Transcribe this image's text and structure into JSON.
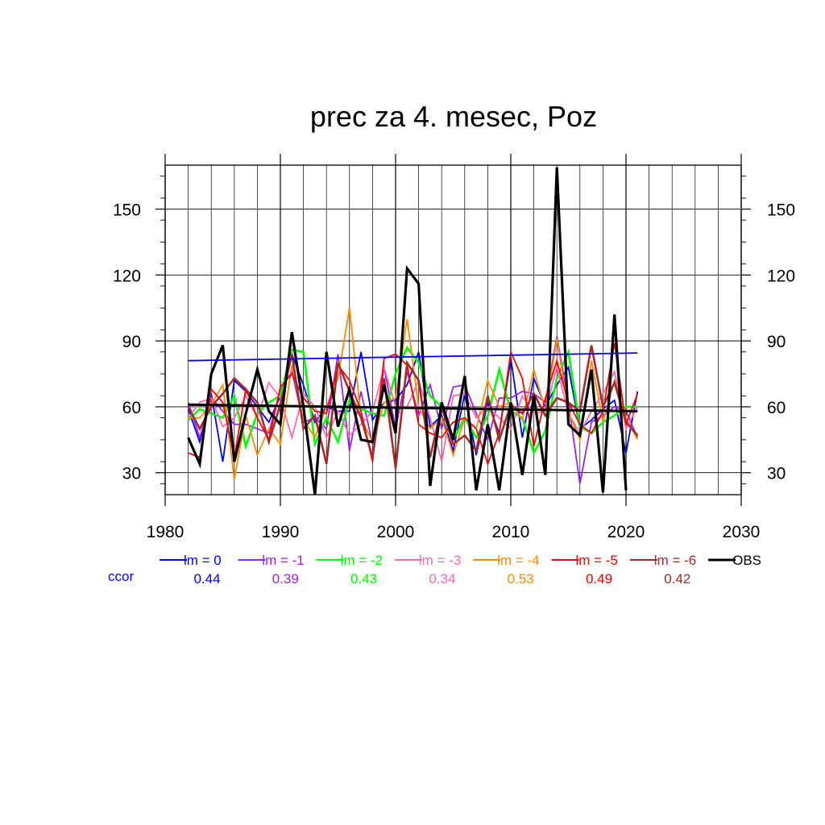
{
  "chart_data": {
    "type": "line",
    "title": "prec za 4. mesec, Poz",
    "xlabel": "",
    "ylabel": "",
    "xlim": [
      1980,
      2030
    ],
    "ylim": [
      20,
      170
    ],
    "x_ticks": [
      "1980",
      "1990",
      "2000",
      "2010",
      "2020",
      "2030"
    ],
    "y_ticks": [
      "30",
      "60",
      "90",
      "120",
      "150"
    ],
    "grid": true,
    "legend_position": "bottom",
    "ccor_label": "ccor",
    "x": [
      1982,
      1983,
      1984,
      1985,
      1986,
      1987,
      1988,
      1989,
      1990,
      1991,
      1992,
      1993,
      1994,
      1995,
      1996,
      1997,
      1998,
      1999,
      2000,
      2001,
      2002,
      2003,
      2004,
      2005,
      2006,
      2007,
      2008,
      2009,
      2010,
      2011,
      2012,
      2013,
      2014,
      2015,
      2016,
      2017,
      2018,
      2019,
      2020,
      2021
    ],
    "series": [
      {
        "name": "lm = 0",
        "color": "#0000ff",
        "width": 1.8,
        "ccor": "0.44",
        "values": [
          59,
          44,
          66,
          35,
          72,
          67,
          60,
          53,
          65,
          84,
          70,
          53,
          60,
          58,
          58,
          85,
          54,
          62,
          63,
          70,
          85,
          51,
          56,
          40,
          66,
          38,
          62,
          48,
          82,
          46,
          73,
          60,
          70,
          78,
          50,
          54,
          59,
          63,
          39,
          67
        ],
        "trend": [
          81,
          84.5
        ]
      },
      {
        "name": "lm = -1",
        "color": "#a020f0",
        "width": 1.8,
        "ccor": "0.39",
        "values": [
          62,
          46,
          64,
          58,
          52,
          52,
          50,
          48,
          68,
          76,
          53,
          55,
          50,
          84,
          40,
          67,
          43,
          78,
          50,
          76,
          56,
          70,
          50,
          69,
          70,
          57,
          45,
          64,
          64,
          67,
          66,
          62,
          92,
          62,
          25,
          53,
          56,
          60,
          58,
          46
        ]
      },
      {
        "name": "lm = -2",
        "color": "#00ff00",
        "width": 2.6,
        "ccor": "0.43",
        "values": [
          54,
          59,
          57,
          55,
          65,
          42,
          57,
          62,
          65,
          86,
          85,
          43,
          55,
          44,
          63,
          59,
          57,
          56,
          75,
          87,
          80,
          65,
          60,
          45,
          55,
          46,
          56,
          77,
          58,
          55,
          39,
          49,
          73,
          85,
          51,
          48,
          53,
          56,
          60,
          60
        ]
      },
      {
        "name": "lm = -3",
        "color": "#ff69b4",
        "width": 1.8,
        "ccor": "0.34",
        "values": [
          55,
          62,
          64,
          51,
          55,
          65,
          55,
          71,
          64,
          46,
          66,
          60,
          46,
          58,
          47,
          52,
          58,
          78,
          60,
          60,
          72,
          55,
          35,
          65,
          66,
          55,
          60,
          55,
          50,
          65,
          57,
          58,
          78,
          57,
          48,
          58,
          66,
          76,
          50,
          60
        ]
      },
      {
        "name": "lm = -4",
        "color": "#ff8c00",
        "width": 1.8,
        "ccor": "0.53",
        "values": [
          55,
          55,
          61,
          70,
          27,
          56,
          38,
          50,
          43,
          79,
          54,
          46,
          60,
          73,
          105,
          55,
          44,
          62,
          64,
          100,
          60,
          50,
          55,
          38,
          55,
          50,
          72,
          60,
          62,
          54,
          77,
          58,
          91,
          58,
          45,
          81,
          53,
          72,
          55,
          45
        ]
      },
      {
        "name": "lm = -5",
        "color": "#ff0000",
        "width": 1.8,
        "ccor": "0.49",
        "values": [
          39,
          37,
          68,
          62,
          37,
          68,
          55,
          45,
          69,
          75,
          64,
          58,
          57,
          79,
          72,
          58,
          35,
          82,
          84,
          79,
          52,
          48,
          46,
          53,
          55,
          50,
          34,
          48,
          85,
          73,
          42,
          64,
          81,
          62,
          52,
          48,
          58,
          89,
          52,
          66
        ]
      },
      {
        "name": "lm = -6",
        "color": "#a52a2a",
        "width": 2.6,
        "ccor": "0.42",
        "values": [
          60,
          50,
          60,
          66,
          73,
          68,
          62,
          44,
          61,
          84,
          50,
          56,
          34,
          80,
          67,
          55,
          37,
          73,
          32,
          80,
          72,
          37,
          60,
          43,
          47,
          40,
          65,
          45,
          61,
          57,
          66,
          56,
          64,
          62,
          58,
          88,
          60,
          71,
          53,
          47
        ]
      },
      {
        "name": "OBS",
        "color": "#000000",
        "width": 3.2,
        "ccor": "",
        "values": [
          46,
          34,
          75,
          88,
          35,
          57,
          77,
          58,
          52,
          94,
          60,
          20,
          85,
          51,
          68,
          45,
          44,
          70,
          48,
          123,
          116,
          24,
          62,
          45,
          74,
          22,
          52,
          22,
          62,
          29,
          65,
          29,
          169,
          52,
          47,
          77,
          21,
          102,
          22,
          null
        ],
        "trend": [
          61,
          58
        ]
      }
    ]
  }
}
